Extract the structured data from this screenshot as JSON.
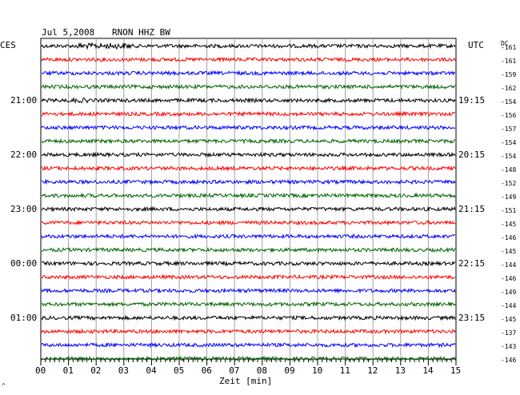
{
  "header": {
    "date": "Jul 5,2008",
    "station": "RNON HHZ BW",
    "left_tz": "CES",
    "right_tz": "UTC",
    "dc_label": "DC",
    "x_axis_label": "Zeit [min]",
    "corner_mark": "^"
  },
  "chart_data": {
    "type": "line",
    "title": "Jul 5,2008  RNON HHZ BW",
    "xlabel": "Zeit [min]",
    "xlim": [
      0,
      15
    ],
    "x_ticks": [
      "00",
      "01",
      "02",
      "03",
      "04",
      "05",
      "06",
      "07",
      "08",
      "09",
      "10",
      "11",
      "12",
      "13",
      "14",
      "15"
    ],
    "trace_colors": [
      "#000000",
      "#ff0000",
      "#0000ff",
      "#006400"
    ],
    "traces_count": 24,
    "dc_offsets": [
      "-161",
      "-161",
      "-159",
      "-162",
      "-154",
      "-156",
      "-157",
      "-154",
      "-154",
      "-148",
      "-152",
      "-149",
      "-151",
      "-145",
      "-146",
      "-145",
      "-144",
      "-146",
      "-149",
      "-144",
      "-145",
      "-137",
      "-143",
      "-146"
    ],
    "local_time_labels": [
      {
        "trace": 4,
        "text": "21:00"
      },
      {
        "trace": 8,
        "text": "22:00"
      },
      {
        "trace": 12,
        "text": "23:00"
      },
      {
        "trace": 16,
        "text": "00:00"
      },
      {
        "trace": 20,
        "text": "01:00"
      }
    ],
    "utc_time_labels": [
      {
        "trace": 4,
        "text": "19:15"
      },
      {
        "trace": 8,
        "text": "20:15"
      },
      {
        "trace": 12,
        "text": "21:15"
      },
      {
        "trace": 16,
        "text": "22:15"
      },
      {
        "trace": 20,
        "text": "23:15"
      }
    ],
    "grid": true
  }
}
